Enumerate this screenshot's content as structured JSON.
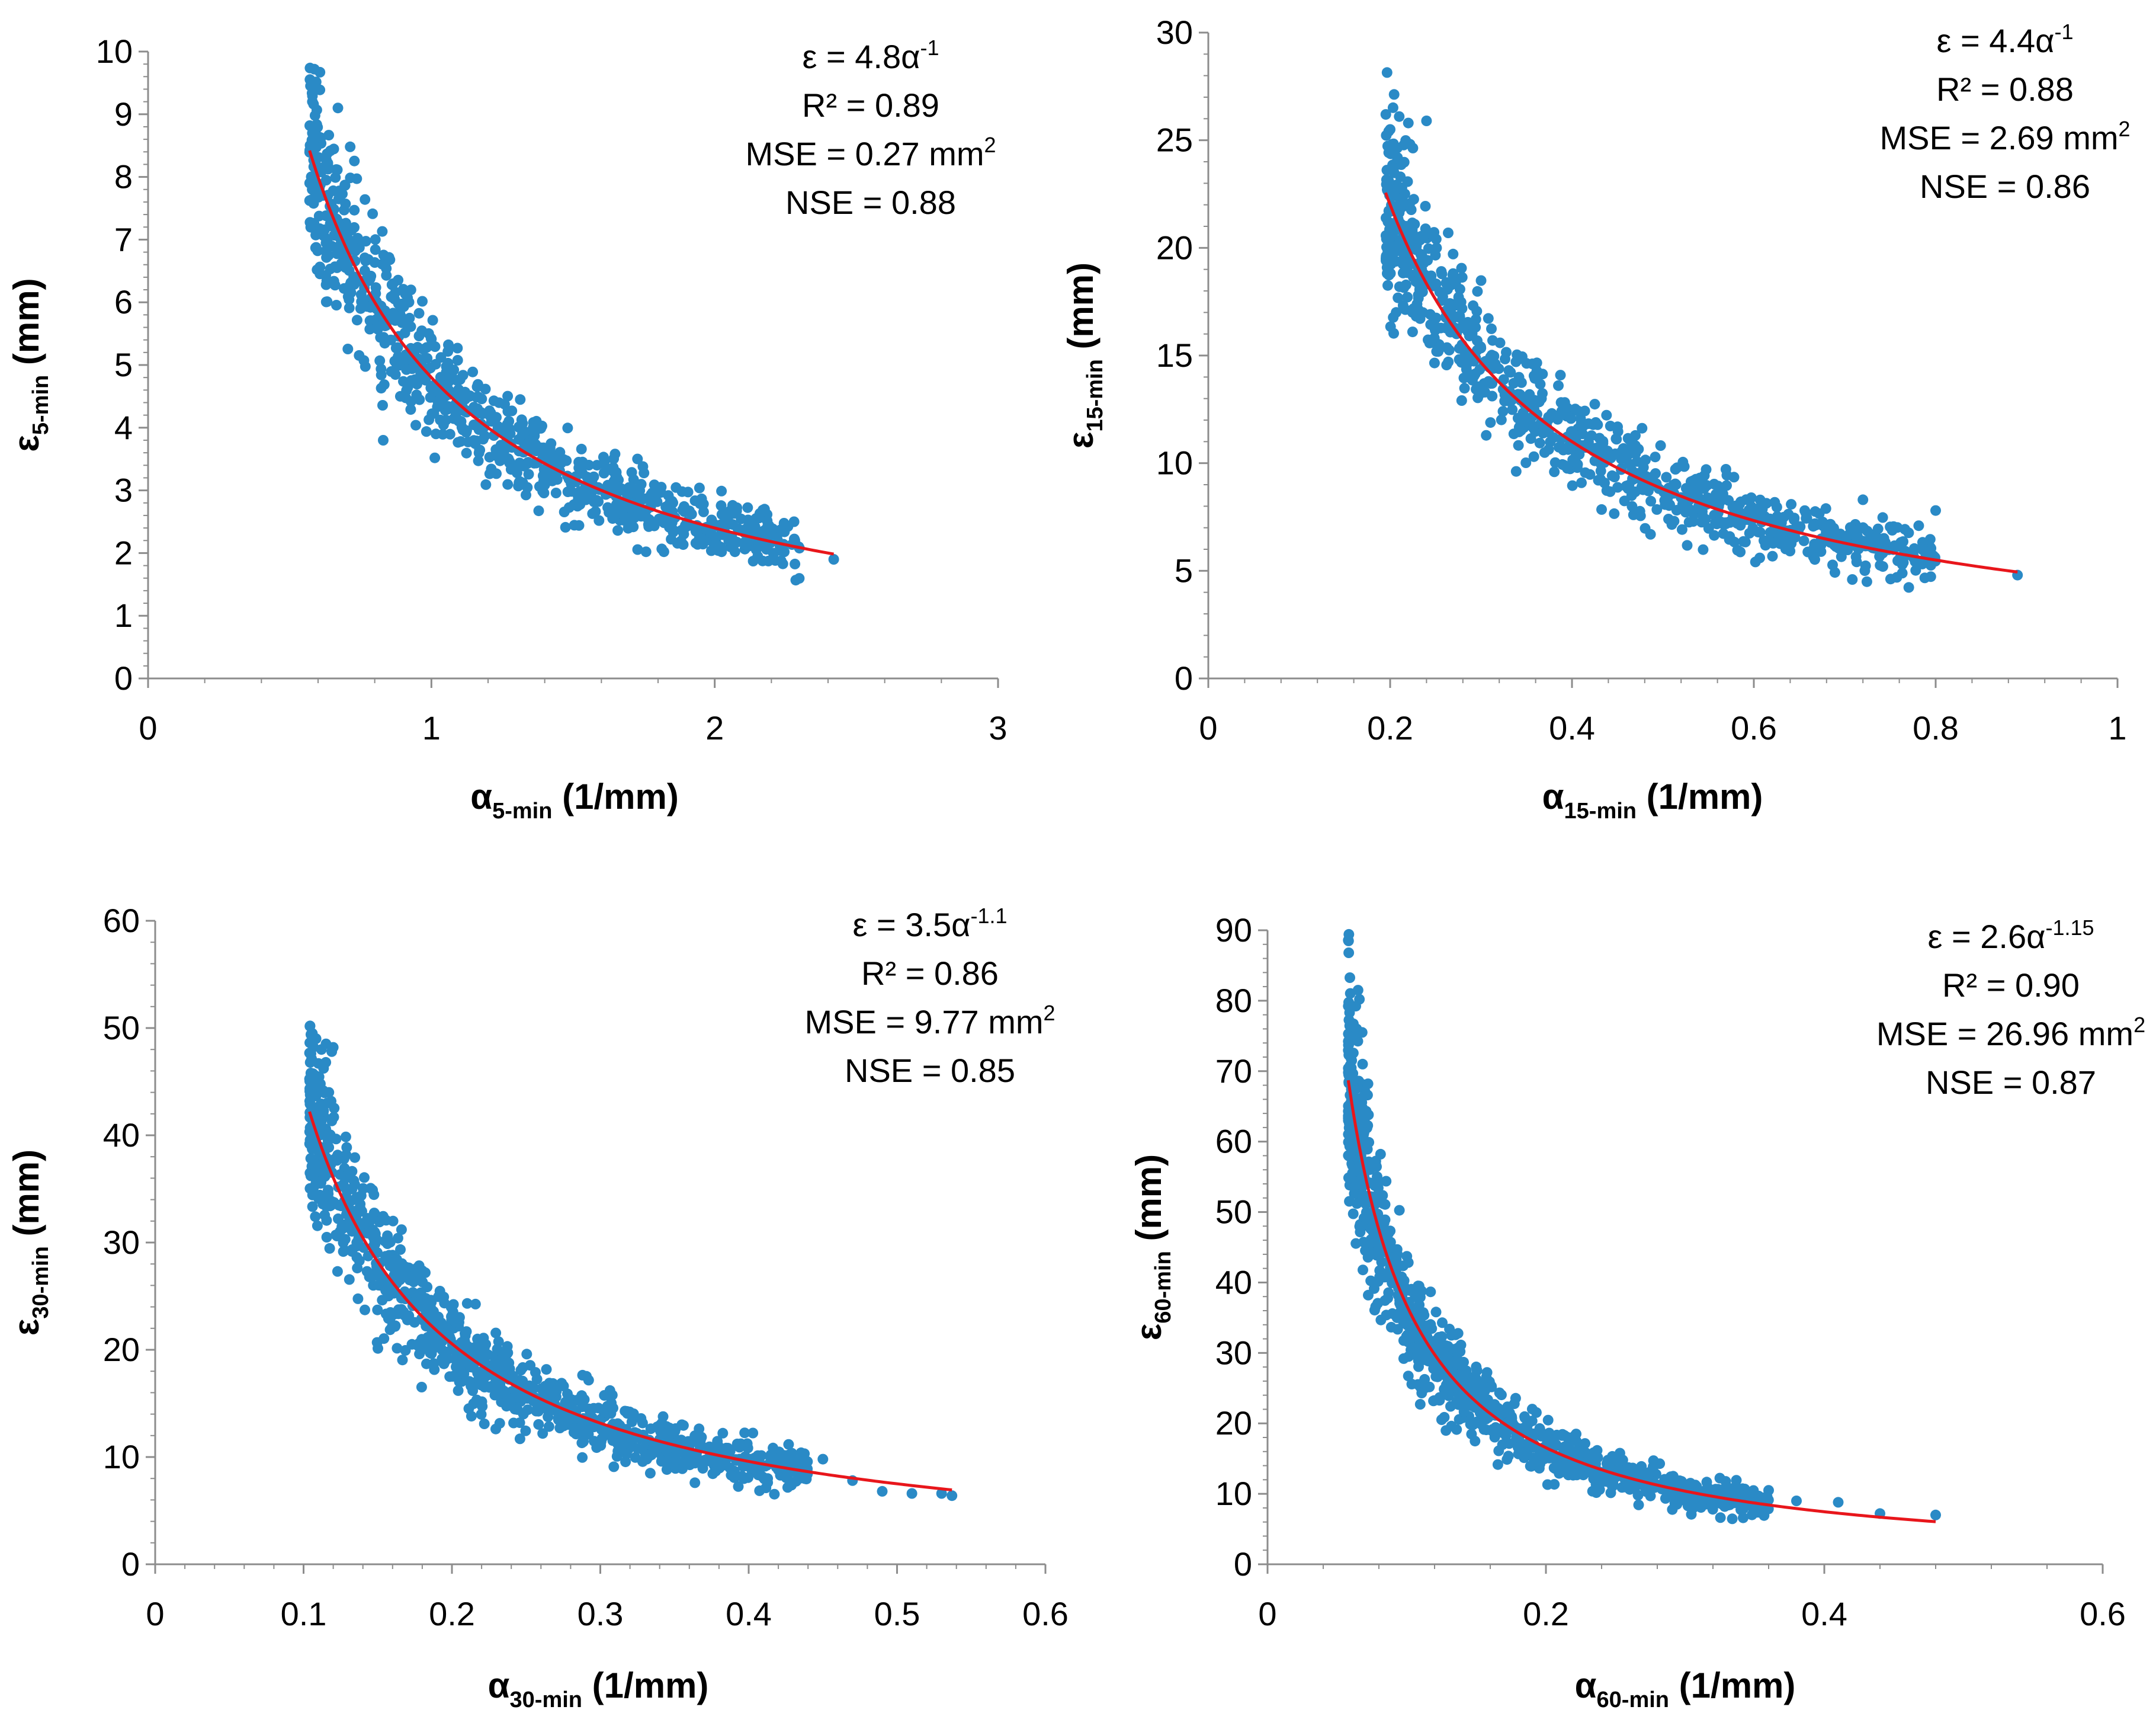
{
  "chart_data": [
    {
      "type": "scatter",
      "id": "p5",
      "xlim": [
        0,
        3
      ],
      "ylim": [
        0,
        10
      ],
      "xticks": [
        0,
        1,
        2,
        3
      ],
      "yticks": [
        0,
        1,
        2,
        3,
        4,
        5,
        6,
        7,
        8,
        9,
        10
      ],
      "xticklabels": [
        "0",
        "1",
        "2",
        "3"
      ],
      "yticklabels": [
        "0",
        "1",
        "2",
        "3",
        "4",
        "5",
        "6",
        "7",
        "8",
        "9",
        "10"
      ],
      "xlabel": {
        "base": "α",
        "sub": "5-min",
        "unit": " (1/mm)"
      },
      "ylabel": {
        "base": "ε",
        "sub": "5-min",
        "unit": "  (mm)"
      },
      "fit": {
        "a": 4.8,
        "b": 1.0,
        "x_range": [
          0.57,
          2.42
        ],
        "color": "#e8161b"
      },
      "annotation": [
        {
          "text": "ε = 4.8α",
          "sup": "-1"
        },
        {
          "text": "R² = 0.89"
        },
        {
          "text": "MSE = 0.27 mm",
          "sup": "2"
        },
        {
          "text": "NSE = 0.88"
        }
      ],
      "scatter": {
        "n": 900,
        "x_range": [
          0.57,
          2.3
        ],
        "skew": 1.4,
        "rel_noise": 0.1,
        "seed": 11,
        "color": "#2a8ac6",
        "extra_points": [
          [
            0.58,
            9.2
          ],
          [
            0.6,
            9.4
          ],
          [
            0.67,
            9.1
          ],
          [
            0.58,
            8.7
          ],
          [
            2.42,
            1.9
          ],
          [
            2.28,
            2.5
          ],
          [
            0.83,
            3.8
          ]
        ]
      }
    },
    {
      "type": "scatter",
      "id": "p15",
      "xlim": [
        0,
        1
      ],
      "ylim": [
        0,
        30
      ],
      "xticks": [
        0,
        0.2,
        0.4,
        0.6,
        0.8,
        1
      ],
      "yticks": [
        0,
        5,
        10,
        15,
        20,
        25,
        30
      ],
      "xticklabels": [
        "0",
        "0.2",
        "0.4",
        "0.6",
        "0.8",
        "1"
      ],
      "yticklabels": [
        "0",
        "5",
        "10",
        "15",
        "20",
        "25",
        "30"
      ],
      "xlabel": {
        "base": "α",
        "sub": "15-min",
        "unit": " (1/mm)"
      },
      "ylabel": {
        "base": "ε",
        "sub": "15-min",
        "unit": "  (mm)"
      },
      "fit": {
        "a": 4.4,
        "b": 1.0,
        "x_range": [
          0.195,
          0.89
        ],
        "color": "#e8161b"
      },
      "annotation": [
        {
          "text": "ε = 4.4α",
          "sup": "-1"
        },
        {
          "text": "R² = 0.88"
        },
        {
          "text": "MSE = 2.69 mm",
          "sup": "2"
        },
        {
          "text": "NSE = 0.86"
        }
      ],
      "scatter": {
        "n": 900,
        "x_range": [
          0.195,
          0.8
        ],
        "skew": 1.4,
        "rel_noise": 0.1,
        "seed": 23,
        "color": "#2a8ac6",
        "extra_points": [
          [
            0.21,
            26.1
          ],
          [
            0.22,
            25.8
          ],
          [
            0.24,
            25.9
          ],
          [
            0.2,
            25.5
          ],
          [
            0.89,
            4.8
          ],
          [
            0.8,
            7.8
          ],
          [
            0.72,
            8.3
          ]
        ]
      }
    },
    {
      "type": "scatter",
      "id": "p30",
      "xlim": [
        0,
        0.6
      ],
      "ylim": [
        0,
        60
      ],
      "xticks": [
        0,
        0.1,
        0.2,
        0.3,
        0.4,
        0.5,
        0.6
      ],
      "yticks": [
        0,
        10,
        20,
        30,
        40,
        50,
        60
      ],
      "xticklabels": [
        "0",
        "0.1",
        "0.2",
        "0.3",
        "0.4",
        "0.5",
        "0.6"
      ],
      "yticklabels": [
        "0",
        "10",
        "20",
        "30",
        "40",
        "50",
        "60"
      ],
      "xlabel": {
        "base": "α",
        "sub": "30-min",
        "unit": " (1/mm)"
      },
      "ylabel": {
        "base": "ε",
        "sub": "30-min",
        "unit": "  (mm)"
      },
      "fit": {
        "a": 3.5,
        "b": 1.1,
        "x_range": [
          0.104,
          0.537
        ],
        "color": "#e8161b"
      },
      "annotation": [
        {
          "text": "ε = 3.5α",
          "sup": "-1.1"
        },
        {
          "text": "R² = 0.86"
        },
        {
          "text": "MSE = 9.77 mm",
          "sup": "2"
        },
        {
          "text": "NSE = 0.85"
        }
      ],
      "scatter": {
        "n": 1000,
        "x_range": [
          0.104,
          0.44
        ],
        "skew": 1.5,
        "rel_noise": 0.11,
        "seed": 37,
        "color": "#2a8ac6",
        "extra_points": [
          [
            0.11,
            46.7
          ],
          [
            0.115,
            46.8
          ],
          [
            0.12,
            48.2
          ],
          [
            0.119,
            47.8
          ],
          [
            0.537,
            6.4
          ],
          [
            0.51,
            6.6
          ],
          [
            0.47,
            7.8
          ],
          [
            0.45,
            9.8
          ],
          [
            0.49,
            6.8
          ],
          [
            0.53,
            6.6
          ]
        ]
      }
    },
    {
      "type": "scatter",
      "id": "p60",
      "xlim": [
        0,
        0.6
      ],
      "ylim": [
        0,
        90
      ],
      "xticks": [
        0,
        0.2,
        0.4,
        0.6
      ],
      "yticks": [
        0,
        10,
        20,
        30,
        40,
        50,
        60,
        70,
        80,
        90
      ],
      "xticklabels": [
        "0",
        "0.2",
        "0.4",
        "0.6"
      ],
      "yticklabels": [
        "0",
        "10",
        "20",
        "30",
        "40",
        "50",
        "60",
        "70",
        "80",
        "90"
      ],
      "xlabel": {
        "base": "α",
        "sub": "60-min",
        "unit": " (1/mm)"
      },
      "ylabel": {
        "base": "ε",
        "sub": "60-min",
        "unit": "  (mm)"
      },
      "fit": {
        "a": 2.6,
        "b": 1.15,
        "x_range": [
          0.058,
          0.48
        ],
        "color": "#e8161b"
      },
      "annotation": [
        {
          "text": "ε = 2.6α",
          "sup": "-1.15"
        },
        {
          "text": "R² = 0.90"
        },
        {
          "text": "MSE = 26.96 mm",
          "sup": "2"
        },
        {
          "text": "NSE = 0.87"
        }
      ],
      "scatter": {
        "n": 1000,
        "x_range": [
          0.058,
          0.36
        ],
        "skew": 1.8,
        "rel_noise": 0.12,
        "seed": 53,
        "color": "#2a8ac6",
        "extra_points": [
          [
            0.065,
            81.5
          ],
          [
            0.066,
            80.2
          ],
          [
            0.064,
            76.0
          ],
          [
            0.068,
            75.5
          ],
          [
            0.48,
            7.0
          ],
          [
            0.44,
            7.2
          ],
          [
            0.41,
            8.8
          ],
          [
            0.38,
            9.0
          ],
          [
            0.36,
            10.5
          ]
        ]
      }
    }
  ]
}
